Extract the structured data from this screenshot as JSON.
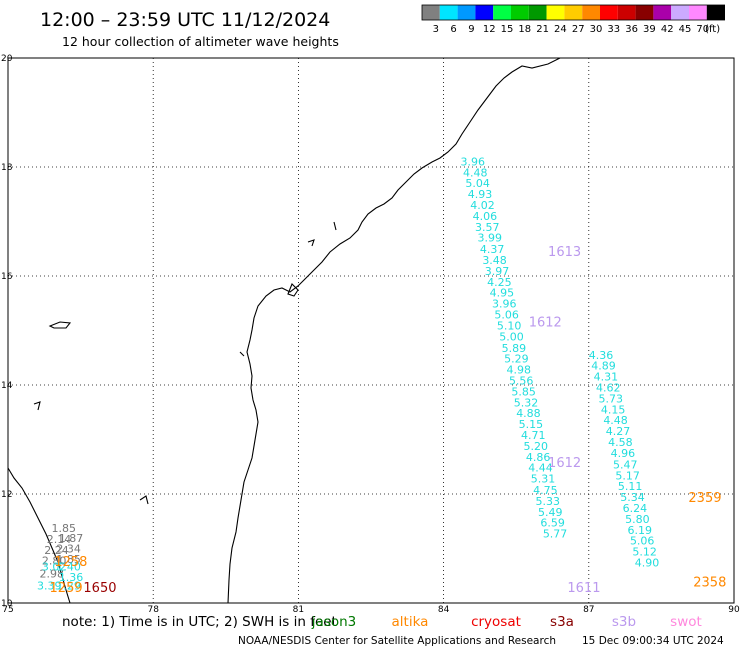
{
  "header": {
    "title": "12:00 – 23:59 UTC 11/12/2024",
    "subtitle": "12 hour collection of altimeter wave heights"
  },
  "color_scale": {
    "unit_label": "(ft)",
    "bins": [
      {
        "label": "3",
        "color": "#808080"
      },
      {
        "label": "6",
        "color": "#00e5ff"
      },
      {
        "label": "9",
        "color": "#0099ff"
      },
      {
        "label": "12",
        "color": "#0000ff"
      },
      {
        "label": "15",
        "color": "#00ff44"
      },
      {
        "label": "18",
        "color": "#00cc00"
      },
      {
        "label": "21",
        "color": "#009900"
      },
      {
        "label": "24",
        "color": "#ffff00"
      },
      {
        "label": "27",
        "color": "#ffcc00"
      },
      {
        "label": "30",
        "color": "#ff8800"
      },
      {
        "label": "33",
        "color": "#ff0000"
      },
      {
        "label": "36",
        "color": "#cc0000"
      },
      {
        "label": "39",
        "color": "#880000"
      },
      {
        "label": "42",
        "color": "#aa00aa"
      },
      {
        "label": "45",
        "color": "#ccaaff"
      },
      {
        "label": "70",
        "color": "#ff88ff"
      },
      {
        "label": "",
        "color": "#000000"
      }
    ]
  },
  "map": {
    "lon_range": [
      75,
      90
    ],
    "lat_range": [
      10,
      20
    ],
    "x_ticks": [
      "75",
      "78",
      "81",
      "84",
      "87",
      "90"
    ],
    "y_ticks": [
      "20",
      "18",
      "16",
      "14",
      "12",
      "10"
    ]
  },
  "tracks": [
    {
      "id": "east-track-a",
      "color": "#22dddd",
      "points": [
        {
          "lon": 84.35,
          "lat": 18.03,
          "v": "3.96"
        },
        {
          "lon": 84.4,
          "lat": 17.83,
          "v": "4.48"
        },
        {
          "lon": 84.45,
          "lat": 17.63,
          "v": "5.04"
        },
        {
          "lon": 84.5,
          "lat": 17.43,
          "v": "4.93"
        },
        {
          "lon": 84.55,
          "lat": 17.23,
          "v": "4.02"
        },
        {
          "lon": 84.6,
          "lat": 17.03,
          "v": "4.06"
        },
        {
          "lon": 84.65,
          "lat": 16.83,
          "v": "3.57"
        },
        {
          "lon": 84.7,
          "lat": 16.63,
          "v": "3.99"
        },
        {
          "lon": 84.75,
          "lat": 16.42,
          "v": "4.37"
        },
        {
          "lon": 84.8,
          "lat": 16.22,
          "v": "3.48"
        },
        {
          "lon": 84.85,
          "lat": 16.02,
          "v": "3.97"
        },
        {
          "lon": 84.9,
          "lat": 15.82,
          "v": "4.25"
        },
        {
          "lon": 84.95,
          "lat": 15.62,
          "v": "4.95"
        },
        {
          "lon": 85.0,
          "lat": 15.42,
          "v": "3.96"
        },
        {
          "lon": 85.05,
          "lat": 15.22,
          "v": "5.06"
        },
        {
          "lon": 85.1,
          "lat": 15.02,
          "v": "5.10"
        },
        {
          "lon": 85.15,
          "lat": 14.82,
          "v": "5.00"
        },
        {
          "lon": 85.2,
          "lat": 14.61,
          "v": "5.89"
        },
        {
          "lon": 85.25,
          "lat": 14.41,
          "v": "5.29"
        },
        {
          "lon": 85.3,
          "lat": 14.21,
          "v": "4.98"
        },
        {
          "lon": 85.35,
          "lat": 14.01,
          "v": "5.56"
        },
        {
          "lon": 85.4,
          "lat": 13.81,
          "v": "5.85"
        },
        {
          "lon": 85.45,
          "lat": 13.61,
          "v": "5.32"
        },
        {
          "lon": 85.5,
          "lat": 13.41,
          "v": "4.88"
        },
        {
          "lon": 85.55,
          "lat": 13.21,
          "v": "5.15"
        },
        {
          "lon": 85.6,
          "lat": 13.01,
          "v": "4.71"
        },
        {
          "lon": 85.65,
          "lat": 12.81,
          "v": "5.20"
        },
        {
          "lon": 85.7,
          "lat": 12.61,
          "v": "4.86"
        },
        {
          "lon": 85.75,
          "lat": 12.41,
          "v": "4.44"
        },
        {
          "lon": 85.8,
          "lat": 12.21,
          "v": "5.31"
        },
        {
          "lon": 85.85,
          "lat": 12.0,
          "v": "4.75"
        },
        {
          "lon": 85.9,
          "lat": 11.8,
          "v": "5.33"
        },
        {
          "lon": 85.95,
          "lat": 11.6,
          "v": "5.49"
        },
        {
          "lon": 86.0,
          "lat": 11.4,
          "v": "6.59"
        },
        {
          "lon": 86.05,
          "lat": 11.2,
          "v": "5.77"
        }
      ]
    },
    {
      "id": "east-track-b",
      "color": "#22dddd",
      "points": [
        {
          "lon": 87.0,
          "lat": 14.48,
          "v": "4.36"
        },
        {
          "lon": 87.05,
          "lat": 14.28,
          "v": "4.89"
        },
        {
          "lon": 87.1,
          "lat": 14.08,
          "v": "4.31"
        },
        {
          "lon": 87.15,
          "lat": 13.88,
          "v": "4.62"
        },
        {
          "lon": 87.2,
          "lat": 13.68,
          "v": "5.73"
        },
        {
          "lon": 87.25,
          "lat": 13.48,
          "v": "4.15"
        },
        {
          "lon": 87.3,
          "lat": 13.28,
          "v": "4.48"
        },
        {
          "lon": 87.35,
          "lat": 13.08,
          "v": "4.27"
        },
        {
          "lon": 87.4,
          "lat": 12.88,
          "v": "4.58"
        },
        {
          "lon": 87.45,
          "lat": 12.68,
          "v": "4.96"
        },
        {
          "lon": 87.5,
          "lat": 12.47,
          "v": "5.47"
        },
        {
          "lon": 87.55,
          "lat": 12.27,
          "v": "5.17"
        },
        {
          "lon": 87.6,
          "lat": 12.07,
          "v": "5.11"
        },
        {
          "lon": 87.65,
          "lat": 11.87,
          "v": "5.34"
        },
        {
          "lon": 87.7,
          "lat": 11.67,
          "v": "6.24"
        },
        {
          "lon": 87.75,
          "lat": 11.47,
          "v": "5.80"
        },
        {
          "lon": 87.8,
          "lat": 11.27,
          "v": "6.19"
        },
        {
          "lon": 87.85,
          "lat": 11.07,
          "v": "5.06"
        },
        {
          "lon": 87.9,
          "lat": 10.87,
          "v": "5.12"
        },
        {
          "lon": 87.95,
          "lat": 10.67,
          "v": "4.90"
        }
      ]
    },
    {
      "id": "west-track-grey",
      "color": "#777777",
      "points": [
        {
          "lon": 75.9,
          "lat": 11.3,
          "v": "1.85"
        },
        {
          "lon": 76.05,
          "lat": 11.12,
          "v": "1.87"
        },
        {
          "lon": 75.8,
          "lat": 11.1,
          "v": "2.14"
        },
        {
          "lon": 76.0,
          "lat": 10.93,
          "v": "2.34"
        },
        {
          "lon": 75.75,
          "lat": 10.9,
          "v": "2.24"
        },
        {
          "lon": 76.0,
          "lat": 10.73,
          "v": "1.85"
        },
        {
          "lon": 75.7,
          "lat": 10.71,
          "v": "2.80"
        },
        {
          "lon": 75.65,
          "lat": 10.47,
          "v": "2.98"
        }
      ]
    },
    {
      "id": "west-track-cyan",
      "color": "#22dddd",
      "points": [
        {
          "lon": 75.7,
          "lat": 10.6,
          "v": "3.02"
        },
        {
          "lon": 76.0,
          "lat": 10.6,
          "v": "1.40"
        },
        {
          "lon": 76.05,
          "lat": 10.4,
          "v": "1.36"
        },
        {
          "lon": 75.6,
          "lat": 10.25,
          "v": "3.39"
        },
        {
          "lon": 76.0,
          "lat": 10.25,
          "v": "1.29"
        }
      ]
    }
  ],
  "time_labels": [
    {
      "lon": 86.5,
      "lat": 16.37,
      "v": "1613",
      "color": "#bb99ee"
    },
    {
      "lon": 86.1,
      "lat": 15.07,
      "v": "1612",
      "color": "#bb99ee"
    },
    {
      "lon": 86.5,
      "lat": 12.5,
      "v": "1612",
      "color": "#bb99ee"
    },
    {
      "lon": 86.9,
      "lat": 10.2,
      "v": "1611",
      "color": "#bb99ee"
    },
    {
      "lon": 89.4,
      "lat": 11.85,
      "v": "2359",
      "color": "#ff8800"
    },
    {
      "lon": 89.5,
      "lat": 10.3,
      "v": "2358",
      "color": "#ff8800"
    },
    {
      "lon": 76.3,
      "lat": 10.68,
      "v": "1258",
      "color": "#ff8800"
    },
    {
      "lon": 76.2,
      "lat": 10.2,
      "v": "1259",
      "color": "#ff8800"
    },
    {
      "lon": 76.9,
      "lat": 10.2,
      "v": "1650",
      "color": "#990000"
    }
  ],
  "footer": {
    "note_prefix": "note:  1) Time is in UTC;  2) SWH is in feet",
    "satellites": [
      {
        "name": "jason3",
        "color": "#007700"
      },
      {
        "name": "altika",
        "color": "#ff8800"
      },
      {
        "name": "cryosat",
        "color": "#ee0000"
      },
      {
        "name": "s3a",
        "color": "#880000"
      },
      {
        "name": "s3b",
        "color": "#bb99ee"
      },
      {
        "name": "swot",
        "color": "#ff88dd"
      }
    ],
    "credit": "NOAA/NESDIS Center for Satellite Applications and Research",
    "generated": "15 Dec 09:00:34 UTC 2024"
  }
}
